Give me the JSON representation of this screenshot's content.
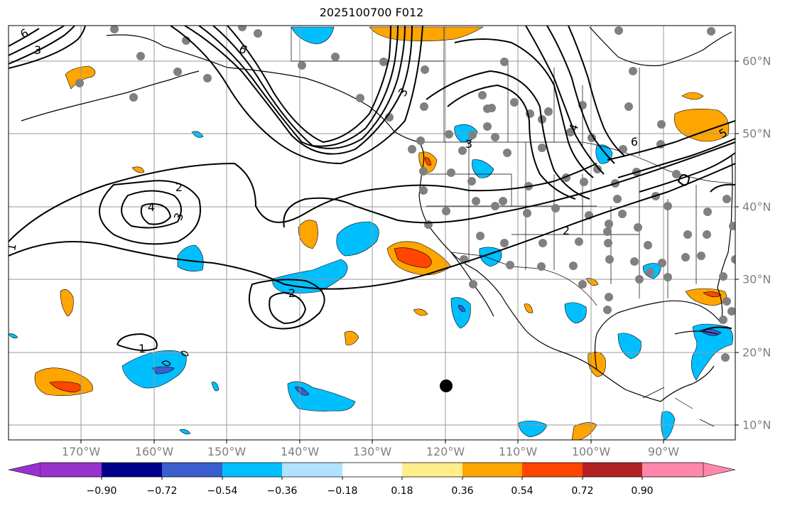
{
  "title": "2025100700 F012",
  "map": {
    "lat_labels": [
      "60°N",
      "50°N",
      "40°N",
      "30°N",
      "20°N",
      "10°N"
    ],
    "lon_labels": [
      "170°W",
      "160°W",
      "150°W",
      "140°W",
      "130°W",
      "120°W",
      "110°W",
      "100°W",
      "90°W"
    ],
    "contour_labels": [
      "6",
      "3",
      "2",
      "4",
      "3",
      "2",
      "1",
      "3",
      "6",
      "4",
      "6",
      "5",
      "3",
      "2",
      "1"
    ],
    "storm_marker": "black-dot"
  },
  "colorbar": {
    "ticks": [
      "−0.90",
      "−0.72",
      "−0.54",
      "−0.36",
      "−0.18",
      "0.18",
      "0.36",
      "0.54",
      "0.72",
      "0.90"
    ],
    "colors": [
      "#9932cc",
      "#00008b",
      "#3a5fcd",
      "#00bfff",
      "#b0e2ff",
      "#ffffff",
      "#ffec8b",
      "#ffa500",
      "#ff4500",
      "#b22222",
      "#ff88aa"
    ]
  }
}
